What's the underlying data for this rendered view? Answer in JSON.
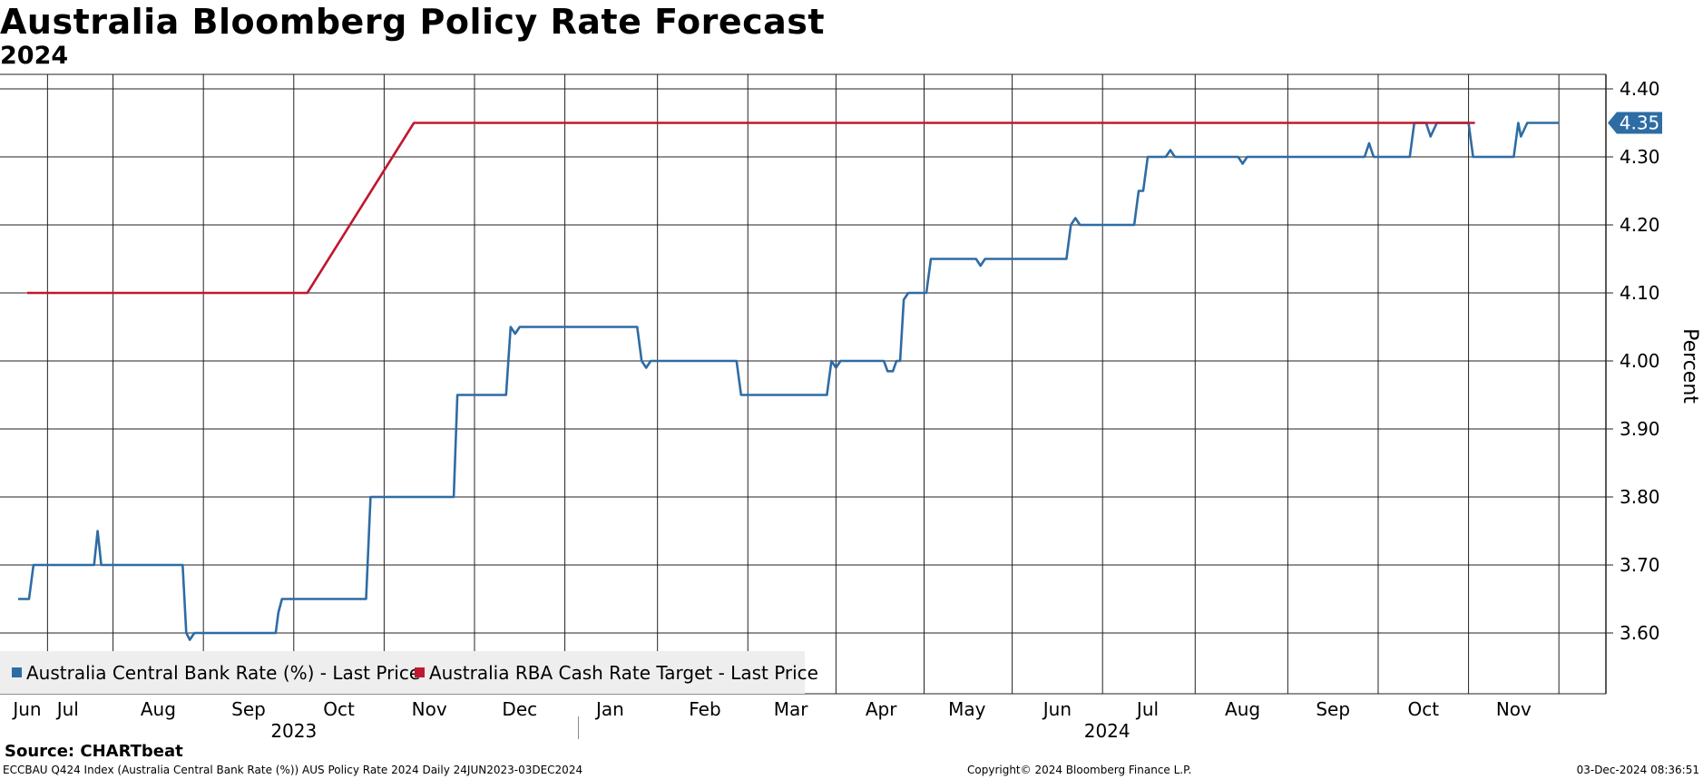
{
  "title": "Australia Bloomberg Policy Rate Forecast",
  "subtitle": "2024",
  "source": "Source: CHARTbeat",
  "footer": {
    "left": "ECCBAU Q424 Index (Australia Central Bank Rate (%)) AUS Policy Rate 2024  Daily 24JUN2023-03DEC2024",
    "center": "Copyright© 2024 Bloomberg Finance L.P.",
    "right": "03-Dec-2024 08:36:51"
  },
  "chart_data": {
    "type": "line",
    "title": "Australia Bloomberg Policy Rate Forecast",
    "subtitle": "2024",
    "ylabel": "Percent",
    "ylim": [
      3.52,
      4.42
    ],
    "yticks": [
      "4.40",
      "4.30",
      "4.20",
      "4.10",
      "4.00",
      "3.90",
      "3.80",
      "3.70",
      "3.60"
    ],
    "xlim": [
      0,
      17.5
    ],
    "months": [
      {
        "label": "Jun",
        "x": 0.1
      },
      {
        "label": "Jul",
        "x": 0.55
      },
      {
        "label": "Aug",
        "x": 1.55
      },
      {
        "label": "Sep",
        "x": 2.55
      },
      {
        "label": "Oct",
        "x": 3.55
      },
      {
        "label": "Nov",
        "x": 4.55
      },
      {
        "label": "Dec",
        "x": 5.55
      },
      {
        "label": "Jan",
        "x": 6.55
      },
      {
        "label": "Feb",
        "x": 7.6
      },
      {
        "label": "Mar",
        "x": 8.55
      },
      {
        "label": "Apr",
        "x": 9.55
      },
      {
        "label": "May",
        "x": 10.5
      },
      {
        "label": "Jun",
        "x": 11.5
      },
      {
        "label": "Jul",
        "x": 12.5
      },
      {
        "label": "Aug",
        "x": 13.55
      },
      {
        "label": "Sep",
        "x": 14.55
      },
      {
        "label": "Oct",
        "x": 15.55
      },
      {
        "label": "Nov",
        "x": 16.55
      }
    ],
    "years": [
      {
        "label": "2023",
        "x": 3.05
      },
      {
        "label": "2024",
        "x": 12.05
      }
    ],
    "year_divider_x": 6.2,
    "grid": true,
    "legend_position": "bottom-left",
    "last_value_label": "4.35",
    "series": [
      {
        "name": "Australia Central Bank Rate (%) - Last Price",
        "color": "#2e6ca4",
        "points": [
          [
            0.0,
            3.65
          ],
          [
            0.12,
            3.65
          ],
          [
            0.17,
            3.7
          ],
          [
            0.55,
            3.7
          ],
          [
            0.84,
            3.7
          ],
          [
            0.88,
            3.75
          ],
          [
            0.92,
            3.7
          ],
          [
            1.4,
            3.7
          ],
          [
            1.82,
            3.7
          ],
          [
            1.86,
            3.6
          ],
          [
            1.9,
            3.59
          ],
          [
            1.95,
            3.6
          ],
          [
            2.85,
            3.6
          ],
          [
            2.88,
            3.63
          ],
          [
            2.92,
            3.65
          ],
          [
            3.4,
            3.65
          ],
          [
            3.85,
            3.65
          ],
          [
            3.9,
            3.8
          ],
          [
            4.5,
            3.8
          ],
          [
            4.82,
            3.8
          ],
          [
            4.86,
            3.95
          ],
          [
            5.4,
            3.95
          ],
          [
            5.45,
            4.05
          ],
          [
            5.5,
            4.04
          ],
          [
            5.55,
            4.05
          ],
          [
            6.2,
            4.05
          ],
          [
            6.85,
            4.05
          ],
          [
            6.9,
            4.0
          ],
          [
            6.95,
            3.99
          ],
          [
            7.0,
            4.0
          ],
          [
            7.5,
            4.0
          ],
          [
            7.95,
            4.0
          ],
          [
            8.0,
            3.95
          ],
          [
            8.5,
            3.95
          ],
          [
            8.95,
            3.95
          ],
          [
            9.0,
            4.0
          ],
          [
            9.05,
            3.99
          ],
          [
            9.1,
            4.0
          ],
          [
            9.5,
            4.0
          ],
          [
            9.58,
            4.0
          ],
          [
            9.62,
            3.985
          ],
          [
            9.68,
            3.985
          ],
          [
            9.72,
            4.0
          ],
          [
            9.76,
            4.0
          ],
          [
            9.8,
            4.09
          ],
          [
            9.85,
            4.1
          ],
          [
            10.05,
            4.1
          ],
          [
            10.1,
            4.15
          ],
          [
            10.6,
            4.15
          ],
          [
            10.65,
            4.14
          ],
          [
            10.7,
            4.15
          ],
          [
            11.5,
            4.15
          ],
          [
            11.6,
            4.15
          ],
          [
            11.65,
            4.2
          ],
          [
            11.7,
            4.21
          ],
          [
            11.75,
            4.2
          ],
          [
            12.35,
            4.2
          ],
          [
            12.4,
            4.25
          ],
          [
            12.45,
            4.25
          ],
          [
            12.5,
            4.3
          ],
          [
            12.7,
            4.3
          ],
          [
            12.75,
            4.31
          ],
          [
            12.8,
            4.3
          ],
          [
            13.5,
            4.3
          ],
          [
            13.55,
            4.29
          ],
          [
            13.6,
            4.3
          ],
          [
            14.9,
            4.3
          ],
          [
            14.95,
            4.32
          ],
          [
            15.0,
            4.3
          ],
          [
            15.4,
            4.3
          ],
          [
            15.45,
            4.35
          ],
          [
            15.58,
            4.35
          ],
          [
            15.63,
            4.33
          ],
          [
            15.7,
            4.35
          ],
          [
            16.05,
            4.35
          ],
          [
            16.1,
            4.3
          ],
          [
            16.55,
            4.3
          ],
          [
            16.6,
            4.35
          ],
          [
            16.63,
            4.33
          ],
          [
            16.7,
            4.35
          ],
          [
            17.05,
            4.35
          ]
        ]
      },
      {
        "name": "Australia RBA Cash Rate Target - Last Price",
        "color": "#c0182f",
        "points": [
          [
            0.1,
            4.1
          ],
          [
            3.2,
            4.1
          ],
          [
            4.38,
            4.35
          ],
          [
            16.12,
            4.35
          ]
        ]
      }
    ]
  }
}
